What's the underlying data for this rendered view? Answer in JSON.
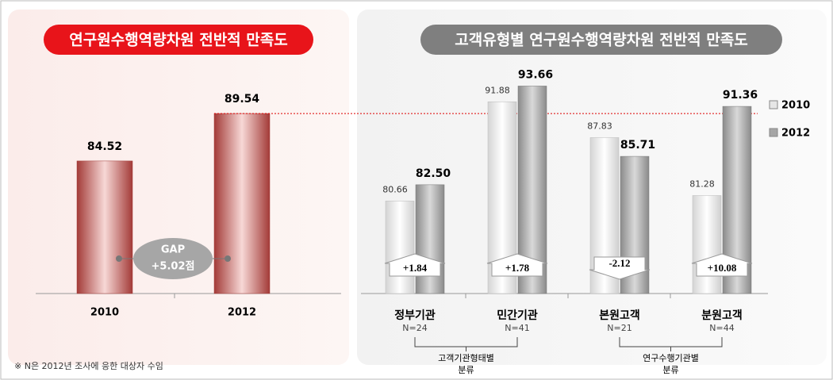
{
  "chart_data": [
    {
      "type": "bar",
      "title": "연구원수행역량차원 전반적 만족도",
      "categories": [
        "2010",
        "2012"
      ],
      "values": [
        84.52,
        89.54
      ],
      "color": "#c0504d",
      "ylim": [
        70.5,
        95
      ],
      "gap_label": "GAP",
      "gap_value": "+5.02점"
    },
    {
      "type": "grouped_bar",
      "title": "고객유형별 연구원수행역량차원 전반적 만족도",
      "categories": [
        "정부기관",
        "민간기관",
        "본원고객",
        "분원고객"
      ],
      "sample_sizes": [
        "N=24",
        "N=41",
        "N=21",
        "N=44"
      ],
      "series": [
        {
          "name": "2010",
          "color": "#e6e6e6",
          "values": [
            80.66,
            91.88,
            87.83,
            81.28
          ]
        },
        {
          "name": "2012",
          "color": "#a6a6a6",
          "values": [
            82.5,
            93.66,
            85.71,
            91.36
          ],
          "value_labels": [
            "82.50",
            "93.66",
            "85.71",
            "91.36"
          ]
        }
      ],
      "differences": [
        {
          "value": 1.84,
          "label": "+1.84"
        },
        {
          "value": 1.78,
          "label": "+1.78"
        },
        {
          "value": -2.12,
          "label": "-2.12"
        },
        {
          "value": 10.08,
          "label": "+10.08"
        }
      ],
      "groups": [
        {
          "label": "고객기관형태별",
          "label2": "분류"
        },
        {
          "label": "연구수행기관별",
          "label2": "분류"
        }
      ],
      "ylim": [
        70.2,
        95
      ],
      "legend": "right"
    },
    {
      "note": "※ N은 2012년 조사에 응한 대상자 수임"
    }
  ]
}
